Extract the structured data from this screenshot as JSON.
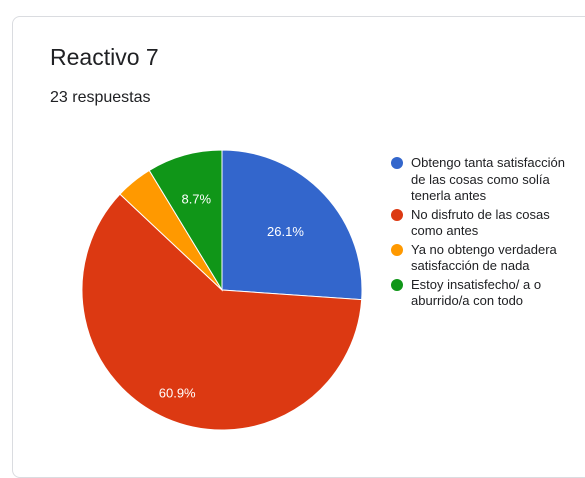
{
  "title": "Reactivo 7",
  "subtitle": "23 respuestas",
  "chart_data": {
    "type": "pie",
    "slices": [
      {
        "label": "Obtengo tanta satisfacción de las cosas como solía tenerla antes",
        "value": 26.1,
        "display": "26.1%",
        "color": "#3366cc"
      },
      {
        "label": "No disfruto de las cosas como antes",
        "value": 60.9,
        "display": "60.9%",
        "color": "#dc3912"
      },
      {
        "label": "Ya no obtengo verdadera satisfacción de nada",
        "value": 4.3,
        "display": "",
        "color": "#ff9900"
      },
      {
        "label": "Estoy insatisfecho/ a o aburrido/a con todo",
        "value": 8.7,
        "display": "8.7%",
        "color": "#109618"
      }
    ],
    "legend_position": "right"
  }
}
